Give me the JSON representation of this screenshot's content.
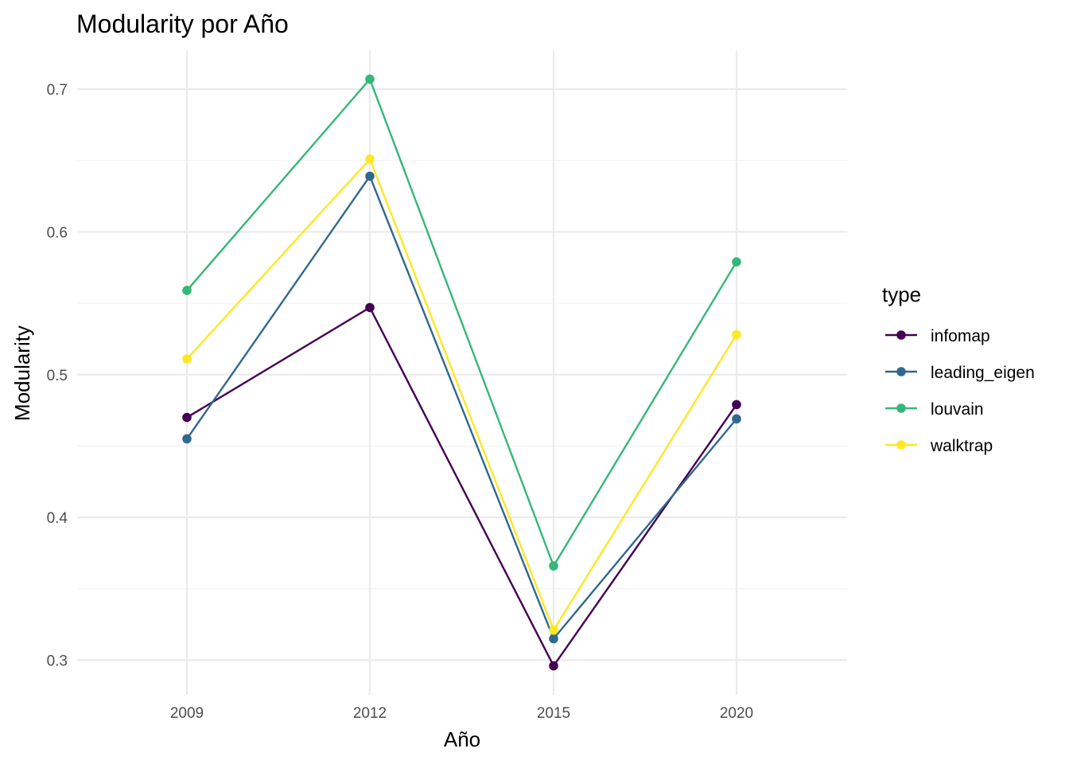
{
  "chart_data": {
    "type": "line",
    "title": "Modularity por Año",
    "xlabel": "Año",
    "ylabel": "Modularity",
    "categories": [
      "2009",
      "2012",
      "2015",
      "2020"
    ],
    "ylim": [
      0.28,
      0.727
    ],
    "y_ticks": [
      "0.3",
      "0.4",
      "0.5",
      "0.6",
      "0.7"
    ],
    "grid": true,
    "legend": {
      "title": "type",
      "position": "right"
    },
    "series": [
      {
        "name": "infomap",
        "color": "#440154",
        "values": [
          0.47,
          0.547,
          0.296,
          0.479
        ]
      },
      {
        "name": "leading_eigen",
        "color": "#31688e",
        "values": [
          0.455,
          0.639,
          0.315,
          0.469
        ]
      },
      {
        "name": "louvain",
        "color": "#35b779",
        "values": [
          0.559,
          0.707,
          0.366,
          0.579
        ]
      },
      {
        "name": "walktrap",
        "color": "#fde725",
        "values": [
          0.511,
          0.651,
          0.321,
          0.528
        ]
      }
    ]
  }
}
